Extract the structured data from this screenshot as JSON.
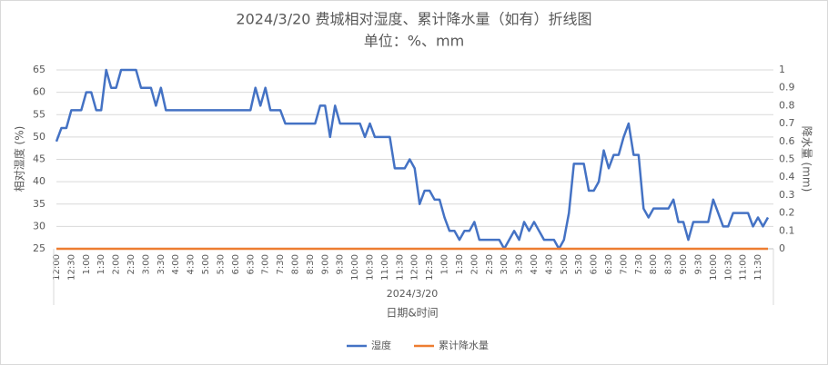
{
  "chart_data": {
    "type": "line",
    "title": "2024/3/20 费城相对湿度、累计降水量（如有）折线图",
    "subtitle": "单位：%、mm",
    "x_group_label": "2024/3/20",
    "x_label": "日期&时间",
    "y_label": "相对湿度 (%)",
    "y2_label": "降水量 (mm)",
    "categories": [
      "12:00",
      null,
      null,
      "12:30",
      null,
      null,
      "1:00",
      null,
      null,
      "1:30",
      null,
      null,
      "2:00",
      null,
      null,
      "2:30",
      null,
      null,
      "3:00",
      null,
      null,
      "3:30",
      null,
      null,
      "4:00",
      null,
      null,
      "4:30",
      null,
      null,
      "5:00",
      null,
      null,
      "5:30",
      null,
      null,
      "6:00",
      null,
      null,
      "6:30",
      null,
      null,
      "7:00",
      null,
      null,
      "7:30",
      null,
      null,
      "8:00",
      null,
      null,
      "8:30",
      null,
      null,
      "9:00",
      null,
      null,
      "9:30",
      null,
      null,
      "10:00",
      null,
      null,
      "10:30",
      null,
      null,
      "11:00",
      null,
      null,
      "11:30",
      null,
      null,
      "12:00",
      null,
      null,
      "12:30",
      null,
      null,
      "1:00",
      null,
      null,
      "1:30",
      null,
      null,
      "2:00",
      null,
      null,
      "2:30",
      null,
      null,
      "3:00",
      null,
      null,
      "3:30",
      null,
      null,
      "4:00",
      null,
      null,
      "4:30",
      null,
      null,
      "5:00",
      null,
      null,
      "5:30",
      null,
      null,
      "6:00",
      null,
      null,
      "6:30",
      null,
      null,
      "7:00",
      null,
      null,
      "7:30",
      null,
      null,
      "8:00",
      null,
      null,
      "8:30",
      null,
      null,
      "9:00",
      null,
      null,
      "9:30",
      null,
      null,
      "10:00",
      null,
      null,
      "10:30",
      null,
      null,
      "11:00",
      null,
      null,
      "11:30",
      null,
      null
    ],
    "series": [
      {
        "name": "湿度",
        "color": "#4472c4",
        "values": [
          49,
          52,
          52,
          56,
          56,
          56,
          60,
          60,
          56,
          56,
          65,
          61,
          61,
          65,
          65,
          65,
          65,
          61,
          61,
          61,
          57,
          61,
          56,
          56,
          56,
          56,
          56,
          56,
          56,
          56,
          56,
          56,
          56,
          56,
          56,
          56,
          56,
          56,
          56,
          56,
          61,
          57,
          61,
          56,
          56,
          56,
          53,
          53,
          53,
          53,
          53,
          53,
          53,
          57,
          57,
          50,
          57,
          53,
          53,
          53,
          53,
          53,
          50,
          53,
          50,
          50,
          50,
          50,
          43,
          43,
          43,
          45,
          43,
          35,
          38,
          38,
          36,
          36,
          32,
          29,
          29,
          27,
          29,
          29,
          31,
          27,
          27,
          27,
          27,
          27,
          25,
          27,
          29,
          27,
          31,
          29,
          31,
          29,
          27,
          27,
          27,
          25,
          27,
          33,
          44,
          44,
          44,
          38,
          38,
          40,
          47,
          43,
          46,
          46,
          50,
          53,
          46,
          46,
          34,
          32,
          34,
          34,
          34,
          34,
          36,
          31,
          31,
          27,
          31,
          31,
          31,
          31,
          36,
          33,
          30,
          30,
          33,
          33,
          33,
          33,
          30,
          32,
          30,
          32
        ]
      },
      {
        "name": "累计降水量",
        "color": "#ed7d31",
        "axis": "y2",
        "values": [
          0,
          0,
          0,
          0,
          0,
          0,
          0,
          0,
          0,
          0,
          0,
          0,
          0,
          0,
          0,
          0,
          0,
          0,
          0,
          0,
          0,
          0,
          0,
          0,
          0,
          0,
          0,
          0,
          0,
          0,
          0,
          0,
          0,
          0,
          0,
          0,
          0,
          0,
          0,
          0,
          0,
          0,
          0,
          0,
          0,
          0,
          0,
          0,
          0,
          0,
          0,
          0,
          0,
          0,
          0,
          0,
          0,
          0,
          0,
          0,
          0,
          0,
          0,
          0,
          0,
          0,
          0,
          0,
          0,
          0,
          0,
          0,
          0,
          0,
          0,
          0,
          0,
          0,
          0,
          0,
          0,
          0,
          0,
          0,
          0,
          0,
          0,
          0,
          0,
          0,
          0,
          0,
          0,
          0,
          0,
          0,
          0,
          0,
          0,
          0,
          0,
          0,
          0,
          0,
          0,
          0,
          0,
          0,
          0,
          0,
          0,
          0,
          0,
          0,
          0,
          0,
          0,
          0,
          0,
          0,
          0,
          0,
          0,
          0,
          0,
          0,
          0,
          0,
          0,
          0,
          0,
          0,
          0,
          0,
          0,
          0,
          0,
          0,
          0,
          0,
          0,
          0,
          0,
          0
        ]
      }
    ],
    "ylim": [
      25,
      65
    ],
    "yticks": [
      25,
      30,
      35,
      40,
      45,
      50,
      55,
      60,
      65
    ],
    "y2lim": [
      0,
      1
    ],
    "y2ticks": [
      0,
      0.1,
      0.2,
      0.3,
      0.4,
      0.5,
      0.6,
      0.7,
      0.8,
      0.9,
      1
    ],
    "grid": true,
    "legend": "bottom"
  }
}
